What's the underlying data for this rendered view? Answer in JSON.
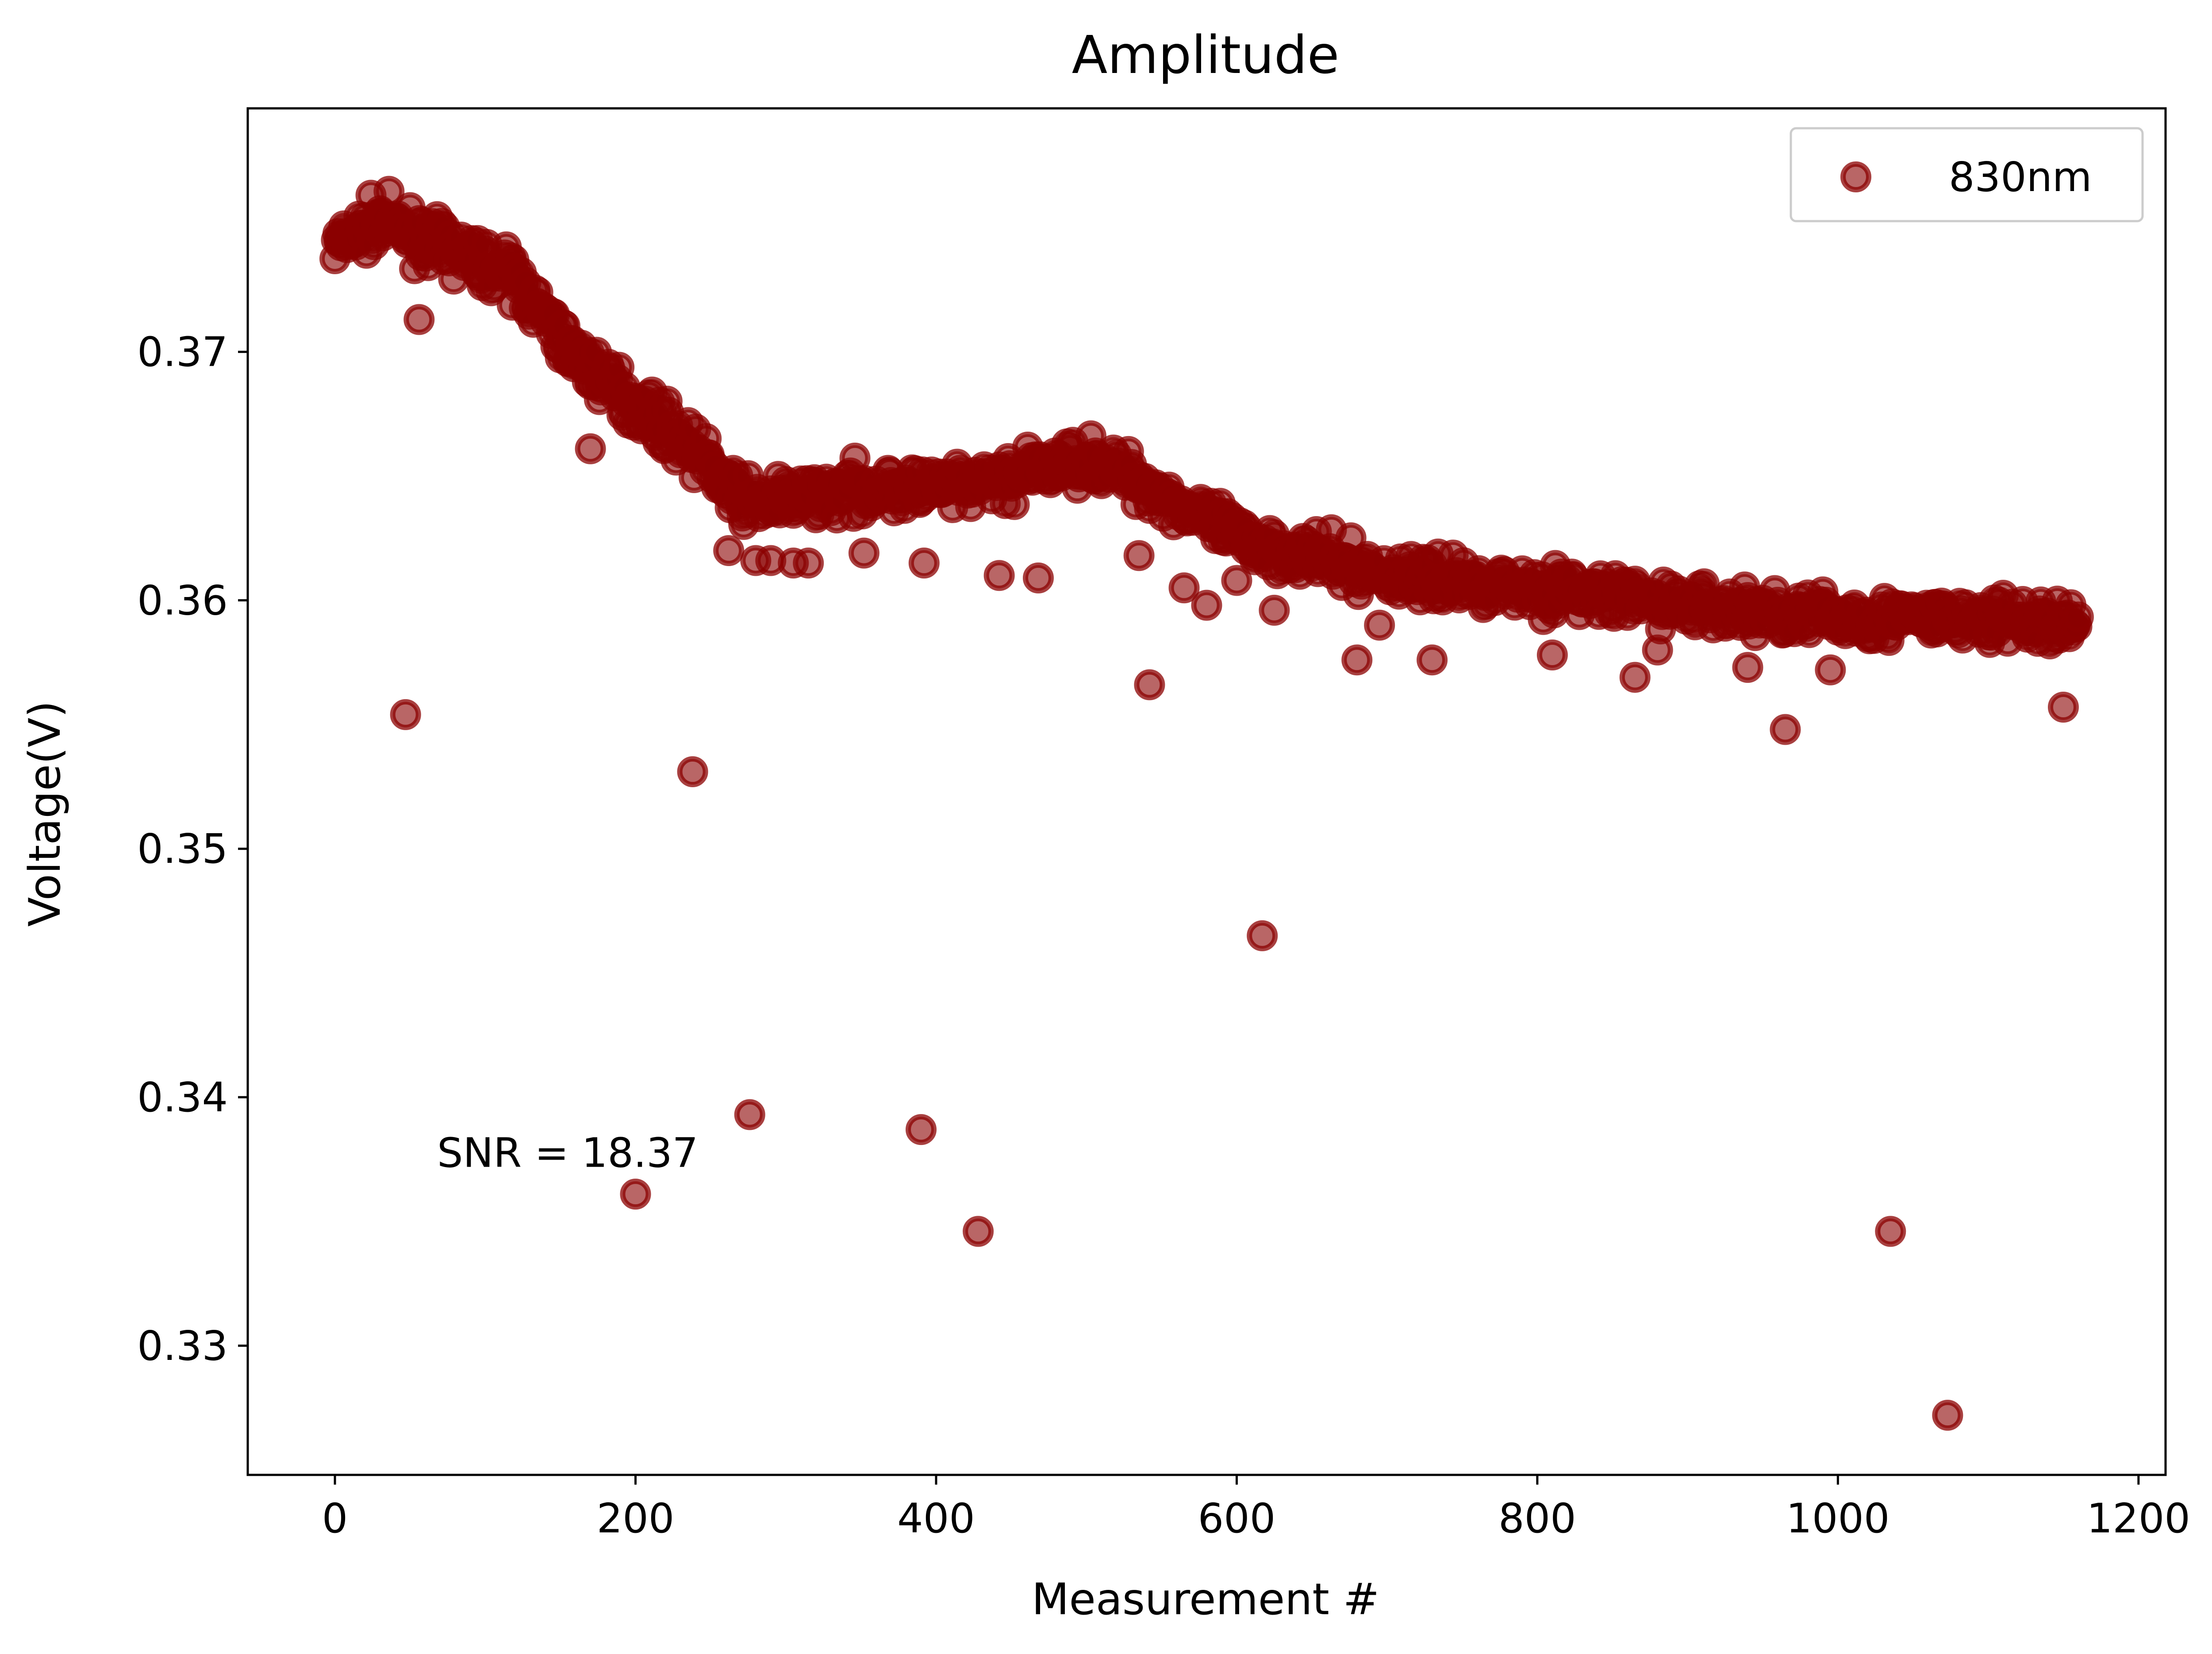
{
  "chart_data": {
    "type": "scatter",
    "title": "Amplitude",
    "xlabel": "Measurement #",
    "ylabel": "Voltage(V)",
    "xlim": [
      -58,
      1218
    ],
    "ylim": [
      0.3248,
      0.3798
    ],
    "xticks": [
      0,
      200,
      400,
      600,
      800,
      1000,
      1200
    ],
    "yticks": [
      0.33,
      0.34,
      0.35,
      0.36,
      0.37
    ],
    "ytick_labels": [
      "0.33",
      "0.34",
      "0.35",
      "0.36",
      "0.37"
    ],
    "legend": {
      "position": "top-right",
      "entries": [
        "830nm"
      ]
    },
    "annotation": {
      "text": "SNR = 18.37",
      "x": 68,
      "y": 0.3372
    },
    "grid": false,
    "series": [
      {
        "name": "830nm",
        "color": "#8b0000",
        "trend": {
          "x": [
            0,
            30,
            60,
            90,
            120,
            150,
            180,
            210,
            240,
            270,
            300,
            350,
            420,
            500,
            530,
            600,
            700,
            800,
            900,
            1000,
            1100,
            1160
          ],
          "y": [
            0.3742,
            0.3753,
            0.3745,
            0.3738,
            0.373,
            0.3705,
            0.3688,
            0.3675,
            0.366,
            0.364,
            0.364,
            0.3645,
            0.3645,
            0.3657,
            0.365,
            0.3625,
            0.361,
            0.3605,
            0.3598,
            0.3593,
            0.3592,
            0.359
          ]
        },
        "outliers": {
          "x": [
            47,
            56,
            170,
            200,
            238,
            262,
            276,
            280,
            290,
            305,
            315,
            352,
            390,
            392,
            428,
            442,
            468,
            535,
            542,
            565,
            580,
            600,
            617,
            625,
            680,
            695,
            730,
            810,
            865,
            880,
            940,
            965,
            995,
            1035,
            1073,
            1150
          ],
          "y": [
            0.3554,
            0.3713,
            0.3661,
            0.3361,
            0.3531,
            0.362,
            0.3393,
            0.3616,
            0.3616,
            0.3615,
            0.3615,
            0.3619,
            0.3387,
            0.3615,
            0.3346,
            0.361,
            0.3609,
            0.3618,
            0.3566,
            0.3605,
            0.3598,
            0.3608,
            0.3465,
            0.3596,
            0.3576,
            0.359,
            0.3576,
            0.3578,
            0.3569,
            0.358,
            0.3573,
            0.3548,
            0.3572,
            0.3346,
            0.3272,
            0.3557
          ]
        }
      }
    ]
  }
}
